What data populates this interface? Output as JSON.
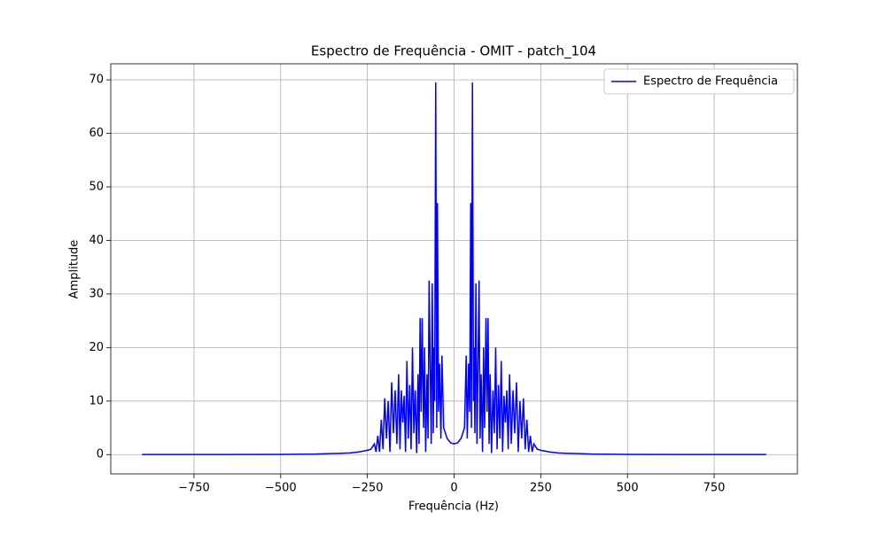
{
  "chart_data": {
    "type": "line",
    "title": "Espectro de Frequência - OMIT - patch_104",
    "x_label": "Frequência (Hz)",
    "y_label": "Amplitude",
    "x": [
      -900,
      -700,
      -500,
      -400,
      -350,
      -300,
      -275,
      -250,
      -240,
      -230,
      -225,
      -220,
      -215,
      -210,
      -205,
      -200,
      -195,
      -190,
      -185,
      -180,
      -175,
      -170,
      -165,
      -160,
      -156,
      -152,
      -148,
      -144,
      -140,
      -136,
      -132,
      -128,
      -124,
      -120,
      -116,
      -112,
      -108,
      -104,
      -101,
      -98,
      -95,
      -92,
      -88,
      -85,
      -82,
      -78,
      -75,
      -72,
      -68,
      -66,
      -63,
      -60,
      -58,
      -56,
      -53,
      -50,
      -48,
      -45,
      -42,
      -38,
      -35,
      -30,
      -20,
      -10,
      0,
      10,
      20,
      30,
      35,
      38,
      42,
      45,
      48,
      50,
      53,
      56,
      58,
      60,
      63,
      66,
      68,
      72,
      75,
      78,
      82,
      85,
      88,
      92,
      95,
      98,
      101,
      104,
      108,
      112,
      116,
      120,
      124,
      128,
      132,
      136,
      140,
      144,
      148,
      152,
      156,
      160,
      165,
      170,
      175,
      180,
      185,
      190,
      195,
      200,
      205,
      210,
      215,
      220,
      225,
      230,
      240,
      250,
      275,
      300,
      350,
      400,
      500,
      700,
      900
    ],
    "series": [
      {
        "name": "Espectro de Frequência",
        "color": "#0000ff",
        "values": [
          0.01,
          0.02,
          0.05,
          0.1,
          0.2,
          0.3,
          0.5,
          0.8,
          1,
          2,
          0.5,
          3.5,
          0.5,
          6.5,
          1,
          10.5,
          3,
          10,
          0.5,
          13.5,
          4,
          12,
          2,
          15,
          1,
          12,
          6,
          11,
          0.5,
          17.5,
          3,
          13,
          1,
          20,
          4,
          12,
          0.3,
          15,
          2,
          25.5,
          8,
          25.5,
          5,
          20,
          0.5,
          15,
          3,
          32.5,
          12,
          2,
          32,
          4,
          20,
          10,
          69.5,
          5,
          47,
          8,
          17,
          3,
          18.5,
          5,
          3.0,
          2.2,
          2.0,
          2.2,
          3.0,
          5,
          18.5,
          3,
          17,
          8,
          47,
          5,
          69.5,
          10,
          20,
          4,
          32,
          2,
          12,
          32.5,
          3,
          15,
          0.5,
          20,
          5,
          25.5,
          8,
          25.5,
          2,
          15,
          0.3,
          12,
          4,
          20,
          1,
          13,
          3,
          17.5,
          0.5,
          11,
          6,
          12,
          1,
          15,
          2,
          12,
          4,
          13.5,
          0.5,
          10,
          3,
          10.5,
          1,
          6.5,
          0.5,
          3.5,
          0.5,
          2,
          1,
          0.8,
          0.5,
          0.3,
          0.2,
          0.1,
          0.05,
          0.02,
          0.01
        ]
      }
    ],
    "xlim": [
      -990,
      990
    ],
    "ylim": [
      -3.6,
      73
    ],
    "xticks": [
      {
        "value": -750,
        "label": "−750"
      },
      {
        "value": -500,
        "label": "−500"
      },
      {
        "value": -250,
        "label": "−250"
      },
      0,
      250,
      500,
      750
    ],
    "yticks": [
      0,
      10,
      20,
      30,
      40,
      50,
      60,
      70
    ],
    "grid": true,
    "legend": "upper right"
  }
}
